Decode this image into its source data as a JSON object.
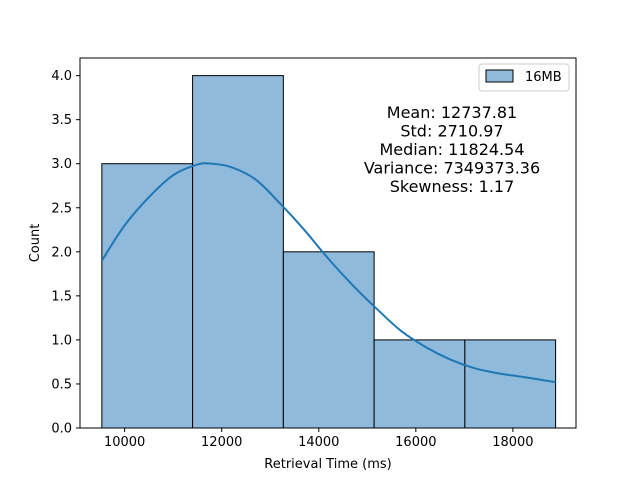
{
  "chart_data": {
    "type": "bar",
    "subtype": "histogram-with-kde",
    "xlabel": "Retrieval Time (ms)",
    "ylabel": "Count",
    "xlim": [
      9080,
      19300
    ],
    "ylim": [
      0,
      4.2
    ],
    "xticks": [
      10000,
      12000,
      14000,
      16000,
      18000
    ],
    "yticks": [
      0.0,
      0.5,
      1.0,
      1.5,
      2.0,
      2.5,
      3.0,
      3.5,
      4.0
    ],
    "xtick_labels": [
      "10000",
      "12000",
      "14000",
      "16000",
      "18000"
    ],
    "ytick_labels": [
      "0.0",
      "0.5",
      "1.0",
      "1.5",
      "2.0",
      "2.5",
      "3.0",
      "3.5",
      "4.0"
    ],
    "bins": [
      {
        "start": 9530,
        "end": 11400,
        "count": 3
      },
      {
        "start": 11400,
        "end": 13270,
        "count": 4
      },
      {
        "start": 13270,
        "end": 15140,
        "count": 2
      },
      {
        "start": 15140,
        "end": 17010,
        "count": 1
      },
      {
        "start": 17010,
        "end": 18880,
        "count": 1
      }
    ],
    "kde": {
      "x": [
        9530,
        10000,
        10500,
        11000,
        11500,
        11800,
        12200,
        12700,
        13200,
        13700,
        14200,
        14700,
        15200,
        15700,
        16200,
        16700,
        17200,
        17700,
        18200,
        18880
      ],
      "y": [
        1.9,
        2.3,
        2.62,
        2.87,
        2.99,
        3.0,
        2.96,
        2.82,
        2.55,
        2.25,
        1.92,
        1.62,
        1.35,
        1.1,
        0.92,
        0.78,
        0.68,
        0.62,
        0.58,
        0.52
      ]
    },
    "series": [
      {
        "name": "16MB",
        "color": "#1f77b4"
      }
    ],
    "legend_position": "top-right",
    "grid": false,
    "annotation_lines": [
      "Mean: 12737.81",
      "Std: 2710.97",
      "Median: 11824.54",
      "Variance: 7349373.36",
      "Skewness: 1.17"
    ],
    "colors": {
      "bar_fill": "#8fbadb",
      "bar_edge": "#000000",
      "kde_line": "#1f77b4"
    }
  }
}
